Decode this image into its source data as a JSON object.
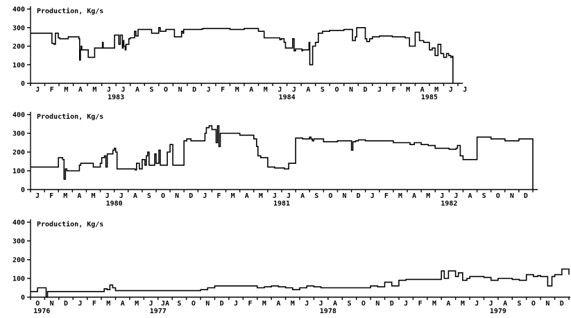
{
  "chart_data": [
    {
      "type": "line",
      "title": "Production, Kg/s",
      "ylim": [
        0,
        400
      ],
      "yticks": [
        0,
        100,
        200,
        300,
        400
      ],
      "xlim": [
        0,
        30
      ],
      "x_ticks": [
        "J",
        "F",
        "M",
        "A",
        "M",
        "J",
        "J",
        "A",
        "S",
        "O",
        "N",
        "D",
        "J",
        "F",
        "M",
        "A",
        "M",
        "J",
        "J",
        "A",
        "S",
        "O",
        "N",
        "D",
        "J",
        "F",
        "M",
        "A",
        "M",
        "J",
        "J"
      ],
      "years": [
        {
          "label": "1983",
          "at": 6
        },
        {
          "label": "1984",
          "at": 18
        },
        {
          "label": "1985",
          "at": 28
        }
      ],
      "series": [
        {
          "x": [
            0,
            1.4,
            1.5,
            1.65,
            1.75,
            1.95,
            2.05,
            2.5,
            2.65,
            3.4,
            3.45,
            3.5,
            3.55,
            3.6,
            4,
            4.05,
            4.4,
            4.5,
            5,
            5.05,
            5.1,
            5.8,
            5.9,
            6.2,
            6.3,
            6.45,
            6.5,
            6.55,
            6.65,
            6.7,
            6.9,
            7,
            7.3,
            7.4,
            7.55,
            8.4,
            8.5,
            9,
            9.1,
            9.5,
            9.6,
            10.1,
            10.2,
            10.6,
            10.7,
            10.75,
            12,
            12.1,
            14,
            15,
            16,
            16.3,
            16.4,
            17.5,
            17.6,
            17.8,
            17.9,
            18.3,
            18.4,
            18.5,
            18.6,
            19,
            19.05,
            19.1,
            19.5,
            19.55,
            19.6,
            19.8,
            20,
            20.2,
            20.5,
            21,
            22,
            22.5,
            22.6,
            22.8,
            22.9,
            23.5,
            23.6,
            23.8,
            24,
            24.5,
            25,
            25.4,
            25.6,
            25.8,
            26.3,
            26.6,
            27,
            27.3,
            27.6,
            28,
            28.2,
            28.4,
            28.6,
            28.8,
            29,
            29.2,
            29.35,
            29.5,
            29.6,
            29.65
          ],
          "y": [
            270,
            270,
            215,
            210,
            270,
            245,
            240,
            240,
            250,
            240,
            125,
            180,
            200,
            180,
            180,
            140,
            140,
            190,
            190,
            220,
            190,
            190,
            260,
            210,
            260,
            190,
            230,
            200,
            180,
            210,
            240,
            245,
            280,
            255,
            290,
            290,
            270,
            300,
            280,
            290,
            290,
            250,
            250,
            280,
            270,
            290,
            292,
            295,
            290,
            295,
            280,
            280,
            245,
            235,
            240,
            220,
            190,
            190,
            240,
            175,
            185,
            185,
            175,
            180,
            180,
            220,
            100,
            200,
            220,
            270,
            280,
            285,
            290,
            290,
            230,
            250,
            300,
            240,
            225,
            240,
            250,
            255,
            255,
            250,
            250,
            250,
            245,
            200,
            275,
            230,
            220,
            180,
            190,
            150,
            210,
            160,
            140,
            160,
            150,
            140,
            145,
            0
          ]
        }
      ]
    },
    {
      "type": "line",
      "title": "Production,  Kg/s",
      "ylim": [
        0,
        400
      ],
      "yticks": [
        0,
        100,
        200,
        300,
        400
      ],
      "xlim": [
        0,
        36
      ],
      "x_ticks": [
        "J",
        "F",
        "M",
        "A",
        "M",
        "J",
        "J",
        "A",
        "S",
        "O",
        "N",
        "D",
        "J",
        "F",
        "M",
        "A",
        "M",
        "J",
        "J",
        "A",
        "S",
        "O",
        "N",
        "D",
        "J",
        "F",
        "M",
        "A",
        "M",
        "J",
        "J",
        "A",
        "S",
        "O",
        "N",
        "D"
      ],
      "years": [
        {
          "label": "1980",
          "at": 6
        },
        {
          "label": "1981",
          "at": 18
        },
        {
          "label": "1982",
          "at": 30
        }
      ],
      "series": [
        {
          "x": [
            0,
            1.5,
            2,
            2.3,
            2.4,
            2.5,
            2.6,
            3,
            3.5,
            3.6,
            4,
            4.5,
            5,
            5.1,
            5.3,
            5.4,
            5.5,
            5.9,
            6,
            6.1,
            6.2,
            7,
            7.5,
            7.6,
            7.8,
            8,
            8.2,
            8.3,
            8.4,
            8.5,
            8.9,
            9,
            9.2,
            9.3,
            9.5,
            9.8,
            10,
            10.2,
            10.5,
            10.6,
            11,
            11.2,
            11.5,
            12,
            12.5,
            12.6,
            12.8,
            13,
            13.3,
            13.4,
            13.5,
            13.6,
            14,
            14.2,
            14.5,
            15,
            15.5,
            16,
            16.2,
            16.3,
            16.5,
            16.8,
            17,
            17.5,
            18,
            18.2,
            18.5,
            19,
            19.5,
            20,
            20.1,
            20.2,
            20.3,
            20.5,
            21,
            22,
            23,
            23.1,
            23.3,
            23.5,
            24,
            25,
            26,
            27,
            27.2,
            27.5,
            28,
            28.2,
            28.5,
            29,
            29.5,
            30,
            30.5,
            30.6,
            30.8,
            31,
            32,
            33,
            34,
            35,
            35.9,
            36
          ],
          "y": [
            120,
            120,
            170,
            160,
            55,
            110,
            100,
            100,
            130,
            140,
            140,
            120,
            140,
            170,
            180,
            120,
            190,
            210,
            220,
            200,
            110,
            110,
            105,
            140,
            110,
            160,
            130,
            180,
            200,
            130,
            190,
            140,
            210,
            130,
            130,
            200,
            240,
            130,
            130,
            130,
            260,
            270,
            260,
            260,
            300,
            330,
            340,
            320,
            250,
            340,
            230,
            300,
            300,
            300,
            300,
            290,
            290,
            270,
            230,
            180,
            170,
            170,
            120,
            115,
            115,
            110,
            140,
            275,
            270,
            280,
            270,
            260,
            270,
            270,
            255,
            260,
            210,
            255,
            260,
            265,
            260,
            260,
            250,
            250,
            240,
            250,
            240,
            240,
            235,
            220,
            220,
            215,
            220,
            235,
            180,
            160,
            280,
            270,
            260,
            270,
            270,
            0
          ]
        }
      ]
    },
    {
      "type": "line",
      "title": "Production,  Kg/s",
      "ylim": [
        0,
        400
      ],
      "yticks": [
        0,
        100,
        200,
        300,
        400
      ],
      "xlim": [
        0,
        38
      ],
      "x_ticks": [
        "O",
        "N",
        "D",
        "J",
        "F",
        "M",
        "A",
        "M",
        "J",
        "JA",
        "S",
        "O",
        "N",
        "D",
        "J",
        "F",
        "M",
        "A",
        "M",
        "J",
        "J",
        "A",
        "S",
        "O",
        "N",
        "D",
        "J",
        "F",
        "M",
        "A",
        "M",
        "J",
        "J",
        "A",
        "S",
        "O",
        "N",
        "D"
      ],
      "years": [
        {
          "label": "1976",
          "at": 0.8
        },
        {
          "label": "1977",
          "at": 9
        },
        {
          "label": "1978",
          "at": 21
        },
        {
          "label": "1979",
          "at": 33
        }
      ],
      "series": [
        {
          "x": [
            0,
            0.5,
            1,
            1.1,
            1.2,
            5,
            5.2,
            5.4,
            5.6,
            5.8,
            6,
            11.5,
            12,
            12.5,
            13,
            15,
            15.5,
            16,
            16.5,
            17,
            17.5,
            18,
            18.5,
            19,
            19.5,
            20,
            20.5,
            21,
            21.5,
            22,
            23,
            24,
            24.5,
            25,
            25.5,
            25.8,
            26,
            26.5,
            27,
            27.5,
            28,
            28.5,
            29,
            29.2,
            29.5,
            30,
            30.2,
            30.5,
            30.8,
            31,
            32,
            32.5,
            33,
            33.5,
            34,
            34.5,
            35,
            35.5,
            35.8,
            36,
            36.5,
            36.8,
            37,
            37.5,
            38
          ],
          "y": [
            30,
            50,
            50,
            0,
            30,
            30,
            45,
            40,
            65,
            50,
            35,
            35,
            40,
            50,
            60,
            60,
            60,
            50,
            55,
            60,
            55,
            50,
            40,
            50,
            60,
            55,
            50,
            50,
            50,
            50,
            50,
            60,
            55,
            80,
            60,
            60,
            90,
            95,
            95,
            95,
            95,
            95,
            140,
            100,
            140,
            110,
            130,
            90,
            100,
            110,
            105,
            90,
            100,
            100,
            95,
            90,
            120,
            110,
            115,
            110,
            60,
            110,
            120,
            150,
            120
          ]
        }
      ]
    }
  ]
}
